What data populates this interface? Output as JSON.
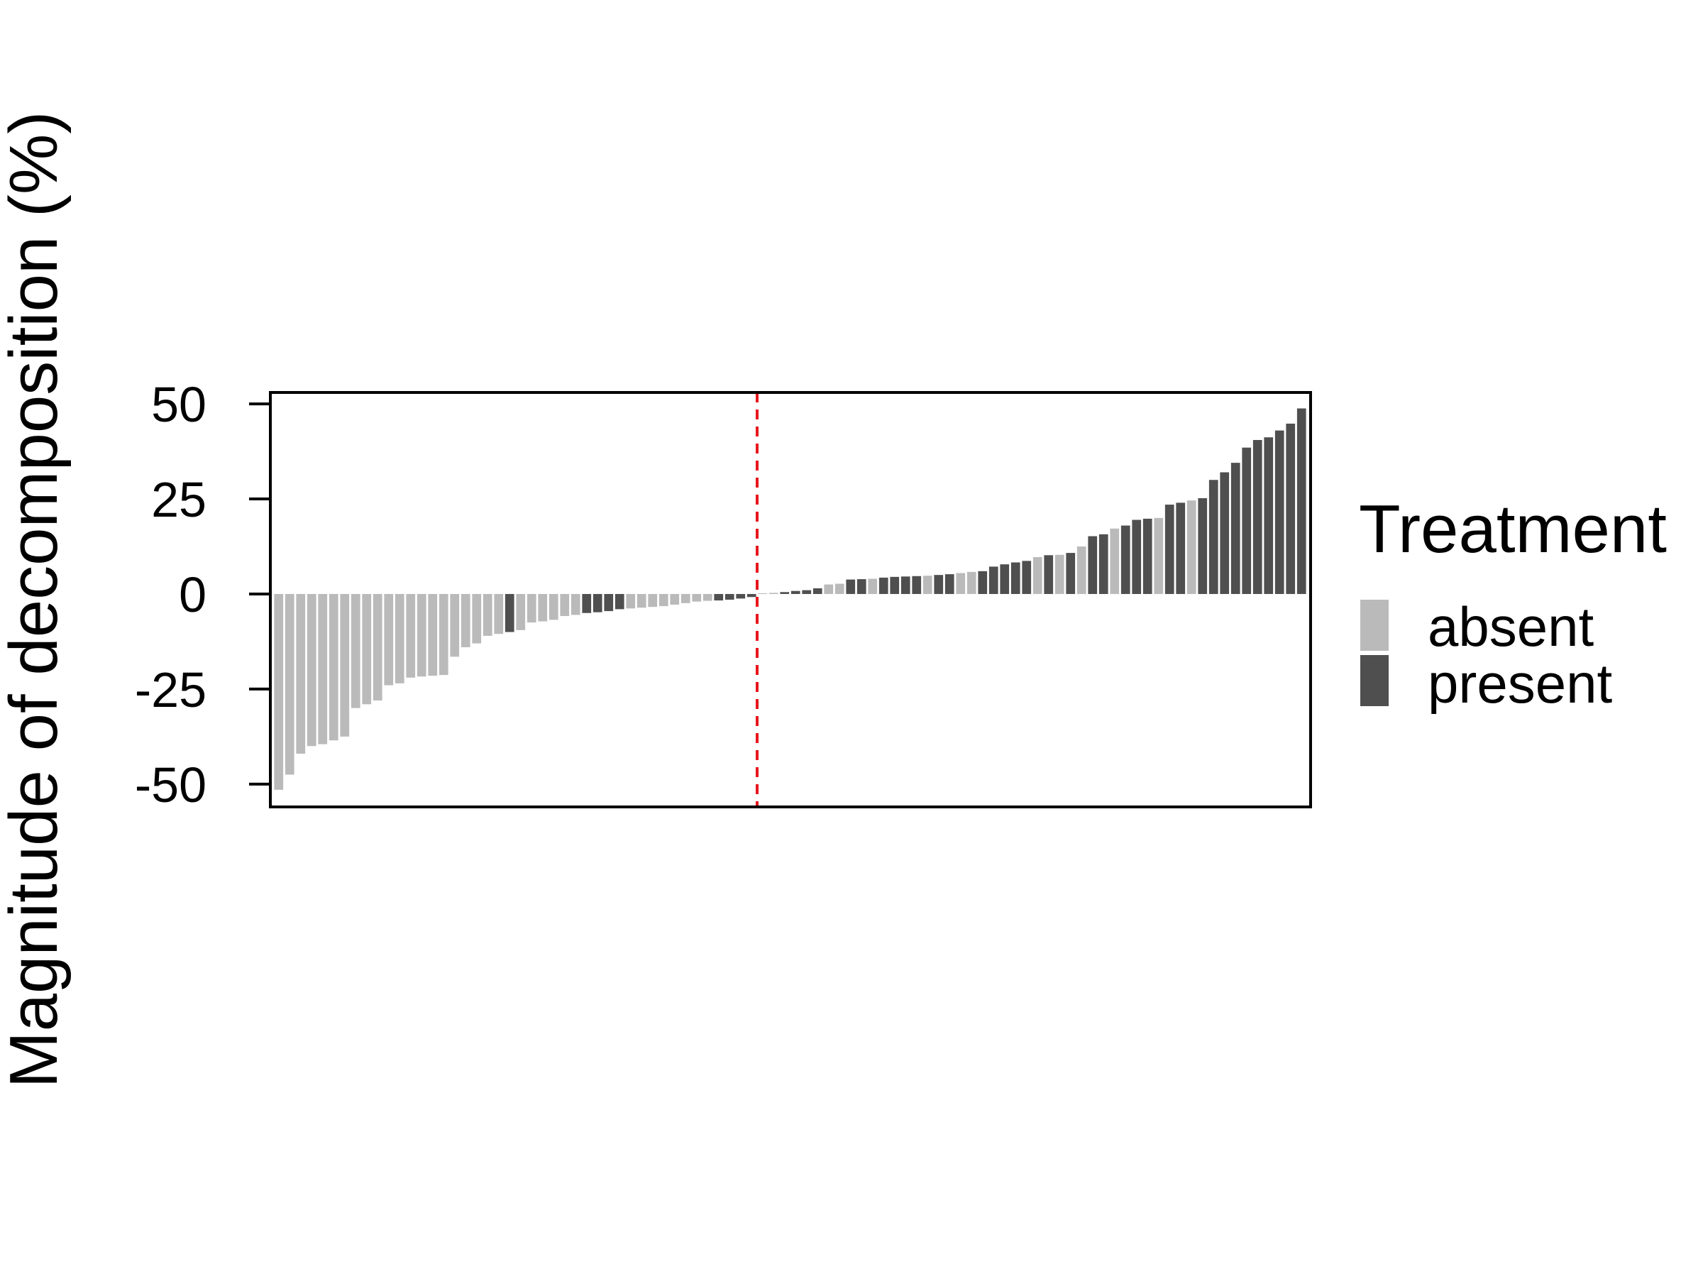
{
  "chart_data": {
    "type": "bar",
    "title": "",
    "xlabel": "",
    "ylabel": "Magnitude of decomposition (%)",
    "ylim": [
      -56,
      53
    ],
    "y_ticks": [
      {
        "value": 50,
        "label": "50"
      },
      {
        "value": 25,
        "label": "25"
      },
      {
        "value": 0,
        "label": "0"
      },
      {
        "value": -25,
        "label": "-25"
      },
      {
        "value": -50,
        "label": "-50"
      }
    ],
    "reference_line": {
      "after_bar_index": 43,
      "color": "#e8161c",
      "style": "dashed"
    },
    "grid": false,
    "legend": {
      "title": "Treatment",
      "placement": "right",
      "entries": [
        {
          "key": "absent",
          "label": "absent",
          "color": "#bababa"
        },
        {
          "key": "present",
          "label": "present",
          "color": "#4f4f4f"
        }
      ]
    },
    "bars": [
      {
        "value": -51.5,
        "group": "absent"
      },
      {
        "value": -47.5,
        "group": "absent"
      },
      {
        "value": -42,
        "group": "absent"
      },
      {
        "value": -40,
        "group": "absent"
      },
      {
        "value": -39.5,
        "group": "absent"
      },
      {
        "value": -38.5,
        "group": "absent"
      },
      {
        "value": -37.5,
        "group": "absent"
      },
      {
        "value": -30,
        "group": "absent"
      },
      {
        "value": -29,
        "group": "absent"
      },
      {
        "value": -28,
        "group": "absent"
      },
      {
        "value": -24,
        "group": "absent"
      },
      {
        "value": -23.5,
        "group": "absent"
      },
      {
        "value": -22,
        "group": "absent"
      },
      {
        "value": -21.7,
        "group": "absent"
      },
      {
        "value": -21.5,
        "group": "absent"
      },
      {
        "value": -21.3,
        "group": "absent"
      },
      {
        "value": -16.5,
        "group": "absent"
      },
      {
        "value": -14,
        "group": "absent"
      },
      {
        "value": -13,
        "group": "absent"
      },
      {
        "value": -11,
        "group": "absent"
      },
      {
        "value": -10.5,
        "group": "absent"
      },
      {
        "value": -10,
        "group": "present"
      },
      {
        "value": -9.5,
        "group": "absent"
      },
      {
        "value": -7.5,
        "group": "absent"
      },
      {
        "value": -7.2,
        "group": "absent"
      },
      {
        "value": -6.8,
        "group": "absent"
      },
      {
        "value": -5.8,
        "group": "absent"
      },
      {
        "value": -5.5,
        "group": "absent"
      },
      {
        "value": -5,
        "group": "present"
      },
      {
        "value": -4.8,
        "group": "present"
      },
      {
        "value": -4.5,
        "group": "present"
      },
      {
        "value": -4,
        "group": "present"
      },
      {
        "value": -3.8,
        "group": "absent"
      },
      {
        "value": -3.6,
        "group": "absent"
      },
      {
        "value": -3.4,
        "group": "absent"
      },
      {
        "value": -3.2,
        "group": "absent"
      },
      {
        "value": -2.8,
        "group": "absent"
      },
      {
        "value": -2.4,
        "group": "absent"
      },
      {
        "value": -2,
        "group": "absent"
      },
      {
        "value": -1.8,
        "group": "absent"
      },
      {
        "value": -1.7,
        "group": "present"
      },
      {
        "value": -1.5,
        "group": "present"
      },
      {
        "value": -1.2,
        "group": "present"
      },
      {
        "value": -0.8,
        "group": "present"
      },
      {
        "value": 0.2,
        "group": "absent"
      },
      {
        "value": 0.3,
        "group": "absent"
      },
      {
        "value": 0.5,
        "group": "present"
      },
      {
        "value": 0.8,
        "group": "present"
      },
      {
        "value": 1,
        "group": "present"
      },
      {
        "value": 1.5,
        "group": "present"
      },
      {
        "value": 2.5,
        "group": "absent"
      },
      {
        "value": 2.7,
        "group": "absent"
      },
      {
        "value": 3.8,
        "group": "present"
      },
      {
        "value": 3.9,
        "group": "present"
      },
      {
        "value": 4,
        "group": "absent"
      },
      {
        "value": 4.3,
        "group": "present"
      },
      {
        "value": 4.5,
        "group": "present"
      },
      {
        "value": 4.6,
        "group": "present"
      },
      {
        "value": 4.7,
        "group": "present"
      },
      {
        "value": 4.8,
        "group": "absent"
      },
      {
        "value": 5,
        "group": "present"
      },
      {
        "value": 5.2,
        "group": "present"
      },
      {
        "value": 5.5,
        "group": "absent"
      },
      {
        "value": 5.8,
        "group": "absent"
      },
      {
        "value": 6,
        "group": "present"
      },
      {
        "value": 7.2,
        "group": "present"
      },
      {
        "value": 7.8,
        "group": "present"
      },
      {
        "value": 8.3,
        "group": "present"
      },
      {
        "value": 8.7,
        "group": "present"
      },
      {
        "value": 9.7,
        "group": "absent"
      },
      {
        "value": 10.2,
        "group": "present"
      },
      {
        "value": 10.3,
        "group": "absent"
      },
      {
        "value": 10.8,
        "group": "present"
      },
      {
        "value": 12.5,
        "group": "absent"
      },
      {
        "value": 15.2,
        "group": "present"
      },
      {
        "value": 15.7,
        "group": "present"
      },
      {
        "value": 17.2,
        "group": "absent"
      },
      {
        "value": 18,
        "group": "present"
      },
      {
        "value": 19.5,
        "group": "present"
      },
      {
        "value": 19.8,
        "group": "present"
      },
      {
        "value": 20,
        "group": "absent"
      },
      {
        "value": 23.5,
        "group": "present"
      },
      {
        "value": 24,
        "group": "present"
      },
      {
        "value": 24.6,
        "group": "absent"
      },
      {
        "value": 25.2,
        "group": "present"
      },
      {
        "value": 30,
        "group": "present"
      },
      {
        "value": 32,
        "group": "present"
      },
      {
        "value": 34.5,
        "group": "present"
      },
      {
        "value": 38.5,
        "group": "present"
      },
      {
        "value": 40.5,
        "group": "present"
      },
      {
        "value": 41.2,
        "group": "present"
      },
      {
        "value": 43,
        "group": "present"
      },
      {
        "value": 44.8,
        "group": "present"
      },
      {
        "value": 48.8,
        "group": "present"
      }
    ]
  }
}
